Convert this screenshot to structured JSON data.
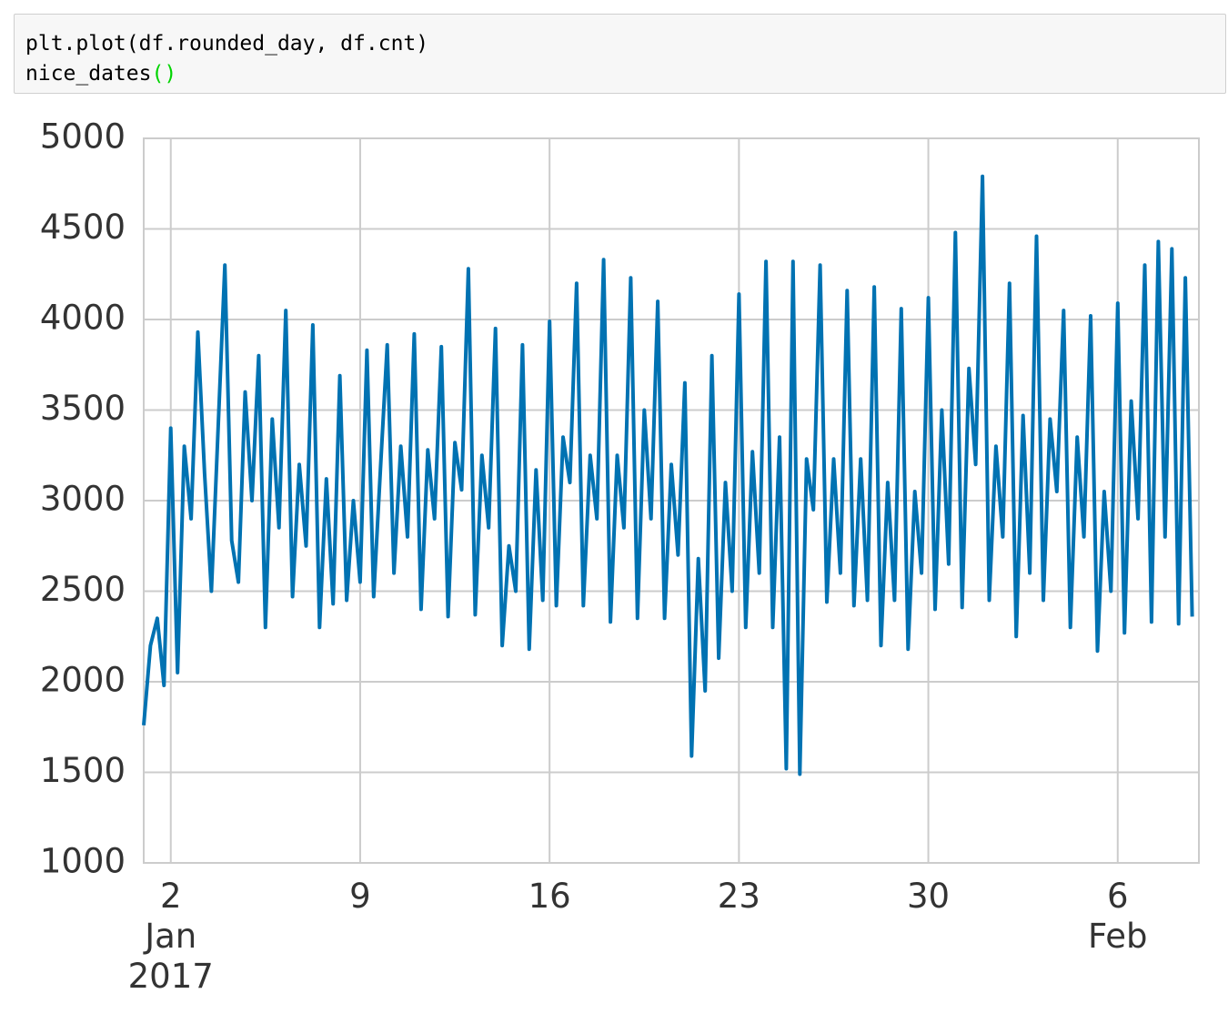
{
  "code": {
    "line1": "plt.plot(df.rounded_day, df.cnt)",
    "line2_name": "nice_dates",
    "line2_parens": "()"
  },
  "chart_data": {
    "type": "line",
    "color": "#0072b2",
    "grid": true,
    "xlim": [
      "2017-01-01T00:00",
      "2017-02-09T00:00"
    ],
    "xticks": [
      {
        "value": "2017-01-02T00:00",
        "label": "2\nJan\n2017"
      },
      {
        "value": "2017-01-09T00:00",
        "label": "9"
      },
      {
        "value": "2017-01-16T00:00",
        "label": "16"
      },
      {
        "value": "2017-01-23T00:00",
        "label": "23"
      },
      {
        "value": "2017-01-30T00:00",
        "label": "30"
      },
      {
        "value": "2017-02-06T00:00",
        "label": "6\nFeb"
      }
    ],
    "ylim": [
      1000,
      5000
    ],
    "yticks": [
      1000,
      1500,
      2000,
      2500,
      3000,
      3500,
      4000,
      4500,
      5000
    ],
    "x": [
      "2017-01-01T00:00",
      "2017-01-01T06:00",
      "2017-01-01T12:00",
      "2017-01-01T18:00",
      "2017-01-02T00:00",
      "2017-01-02T06:00",
      "2017-01-02T12:00",
      "2017-01-02T18:00",
      "2017-01-03T00:00",
      "2017-01-03T06:00",
      "2017-01-03T12:00",
      "2017-01-03T18:00",
      "2017-01-04T00:00",
      "2017-01-04T06:00",
      "2017-01-04T12:00",
      "2017-01-04T18:00",
      "2017-01-05T00:00",
      "2017-01-05T06:00",
      "2017-01-05T12:00",
      "2017-01-05T18:00",
      "2017-01-06T00:00",
      "2017-01-06T06:00",
      "2017-01-06T12:00",
      "2017-01-06T18:00",
      "2017-01-07T00:00",
      "2017-01-07T06:00",
      "2017-01-07T12:00",
      "2017-01-07T18:00",
      "2017-01-08T00:00",
      "2017-01-08T06:00",
      "2017-01-08T12:00",
      "2017-01-08T18:00",
      "2017-01-09T00:00",
      "2017-01-09T06:00",
      "2017-01-09T12:00",
      "2017-01-09T18:00",
      "2017-01-10T00:00",
      "2017-01-10T06:00",
      "2017-01-10T12:00",
      "2017-01-10T18:00",
      "2017-01-11T00:00",
      "2017-01-11T06:00",
      "2017-01-11T12:00",
      "2017-01-11T18:00",
      "2017-01-12T00:00",
      "2017-01-12T06:00",
      "2017-01-12T12:00",
      "2017-01-12T18:00",
      "2017-01-13T00:00",
      "2017-01-13T06:00",
      "2017-01-13T12:00",
      "2017-01-13T18:00",
      "2017-01-14T00:00",
      "2017-01-14T06:00",
      "2017-01-14T12:00",
      "2017-01-14T18:00",
      "2017-01-15T00:00",
      "2017-01-15T06:00",
      "2017-01-15T12:00",
      "2017-01-15T18:00",
      "2017-01-16T00:00",
      "2017-01-16T06:00",
      "2017-01-16T12:00",
      "2017-01-16T18:00",
      "2017-01-17T00:00",
      "2017-01-17T06:00",
      "2017-01-17T12:00",
      "2017-01-17T18:00",
      "2017-01-18T00:00",
      "2017-01-18T06:00",
      "2017-01-18T12:00",
      "2017-01-18T18:00",
      "2017-01-19T00:00",
      "2017-01-19T06:00",
      "2017-01-19T12:00",
      "2017-01-19T18:00",
      "2017-01-20T00:00",
      "2017-01-20T06:00",
      "2017-01-20T12:00",
      "2017-01-20T18:00",
      "2017-01-21T00:00",
      "2017-01-21T06:00",
      "2017-01-21T12:00",
      "2017-01-21T18:00",
      "2017-01-22T00:00",
      "2017-01-22T06:00",
      "2017-01-22T12:00",
      "2017-01-22T18:00",
      "2017-01-23T00:00",
      "2017-01-23T06:00",
      "2017-01-23T12:00",
      "2017-01-23T18:00",
      "2017-01-24T00:00",
      "2017-01-24T06:00",
      "2017-01-24T12:00",
      "2017-01-24T18:00",
      "2017-01-25T00:00",
      "2017-01-25T06:00",
      "2017-01-25T12:00",
      "2017-01-25T18:00",
      "2017-01-26T00:00",
      "2017-01-26T06:00",
      "2017-01-26T12:00",
      "2017-01-26T18:00",
      "2017-01-27T00:00",
      "2017-01-27T06:00",
      "2017-01-27T12:00",
      "2017-01-27T18:00",
      "2017-01-28T00:00",
      "2017-01-28T06:00",
      "2017-01-28T12:00",
      "2017-01-28T18:00",
      "2017-01-29T00:00",
      "2017-01-29T06:00",
      "2017-01-29T12:00",
      "2017-01-29T18:00",
      "2017-01-30T00:00",
      "2017-01-30T06:00",
      "2017-01-30T12:00",
      "2017-01-30T18:00",
      "2017-01-31T00:00",
      "2017-01-31T06:00",
      "2017-01-31T12:00",
      "2017-01-31T18:00",
      "2017-02-01T00:00",
      "2017-02-01T06:00",
      "2017-02-01T12:00",
      "2017-02-01T18:00",
      "2017-02-02T00:00",
      "2017-02-02T06:00",
      "2017-02-02T12:00",
      "2017-02-02T18:00",
      "2017-02-03T00:00",
      "2017-02-03T06:00",
      "2017-02-03T12:00",
      "2017-02-03T18:00",
      "2017-02-04T00:00",
      "2017-02-04T06:00",
      "2017-02-04T12:00",
      "2017-02-04T18:00",
      "2017-02-05T00:00",
      "2017-02-05T06:00",
      "2017-02-05T12:00",
      "2017-02-05T18:00",
      "2017-02-06T00:00",
      "2017-02-06T06:00",
      "2017-02-06T12:00",
      "2017-02-06T18:00",
      "2017-02-07T00:00",
      "2017-02-07T06:00",
      "2017-02-07T12:00",
      "2017-02-07T18:00",
      "2017-02-08T00:00",
      "2017-02-08T06:00",
      "2017-02-08T12:00",
      "2017-02-08T18:00"
    ],
    "values": [
      1760,
      2200,
      2350,
      1980,
      3400,
      2050,
      3300,
      2900,
      3930,
      3150,
      2500,
      3400,
      4300,
      2780,
      2550,
      3600,
      3000,
      3800,
      2300,
      3450,
      2850,
      4050,
      2470,
      3200,
      2750,
      3970,
      2300,
      3120,
      2430,
      3690,
      2450,
      3000,
      2550,
      3830,
      2470,
      3180,
      3860,
      2600,
      3300,
      2800,
      3920,
      2400,
      3280,
      2900,
      3850,
      2360,
      3320,
      3060,
      4280,
      2370,
      3250,
      2850,
      3950,
      2200,
      2750,
      2500,
      3860,
      2180,
      3170,
      2450,
      3990,
      2420,
      3350,
      3100,
      4200,
      2420,
      3250,
      2900,
      4330,
      2330,
      3250,
      2850,
      4230,
      2350,
      3500,
      2900,
      4100,
      2350,
      3200,
      2700,
      3650,
      1590,
      2680,
      1950,
      3800,
      2130,
      3100,
      2500,
      4140,
      2300,
      3270,
      2600,
      4320,
      2300,
      3350,
      1520,
      4320,
      1490,
      3230,
      2950,
      4300,
      2440,
      3230,
      2600,
      4160,
      2420,
      3230,
      2450,
      4180,
      2200,
      3100,
      2450,
      4060,
      2180,
      3050,
      2600,
      4120,
      2400,
      3500,
      2650,
      4480,
      2410,
      3730,
      3200,
      4790,
      2450,
      3300,
      2800,
      4200,
      2250,
      3470,
      2600,
      4460,
      2450,
      3450,
      3050,
      4050,
      2300,
      3350,
      2800,
      4020,
      2170,
      3050,
      2500,
      4090,
      2270,
      3550,
      2900,
      4300,
      2330,
      4430,
      2800,
      4390,
      2320,
      4230,
      2360
    ]
  }
}
